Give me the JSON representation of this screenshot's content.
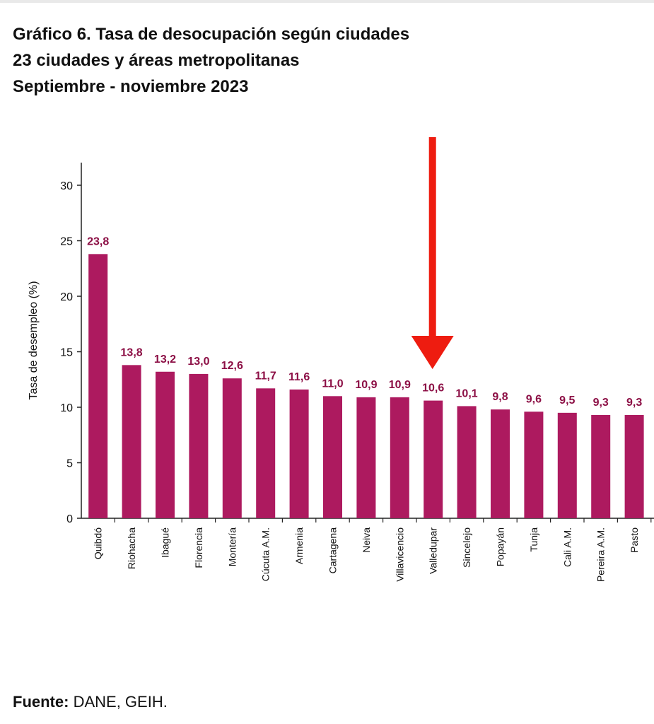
{
  "title_lines": [
    "Gráfico 6. Tasa de desocupación según ciudades",
    "23 ciudades y áreas metropolitanas",
    "Septiembre - noviembre 2023"
  ],
  "source": {
    "label": "Fuente:",
    "text": "DANE, GEIH."
  },
  "colors": {
    "bar": "#ad1a5f",
    "label": "#8c0f45",
    "arrow": "#ee1c10",
    "axis": "#222222"
  },
  "chart_data": {
    "type": "bar",
    "ylabel": "Tasa de desempleo (%)",
    "ylim": [
      0,
      30
    ],
    "yticks": [
      0,
      5,
      10,
      15,
      20,
      25,
      30
    ],
    "grid": false,
    "categories": [
      "Quibdó",
      "Riohacha",
      "Ibagué",
      "Florencia",
      "Montería",
      "Cúcuta A.M.",
      "Armenia",
      "Cartagena",
      "Neiva",
      "Villavicencio",
      "Valledupar",
      "Sincelejo",
      "Popayán",
      "Tunja",
      "Cali A.M.",
      "Pereira A.M.",
      "Pasto"
    ],
    "values": [
      23.8,
      13.8,
      13.2,
      13.0,
      12.6,
      11.7,
      11.6,
      11.0,
      10.9,
      10.9,
      10.6,
      10.1,
      9.8,
      9.6,
      9.5,
      9.3,
      9.3
    ],
    "value_labels": [
      "23,8",
      "13,8",
      "13,2",
      "13,0",
      "12,6",
      "11,7",
      "11,6",
      "11,0",
      "10,9",
      "10,9",
      "10,6",
      "10,1",
      "9,8",
      "9,6",
      "9,5",
      "9,3",
      "9,3"
    ],
    "annotation": {
      "type": "arrow",
      "target_category": "Valledupar"
    }
  }
}
